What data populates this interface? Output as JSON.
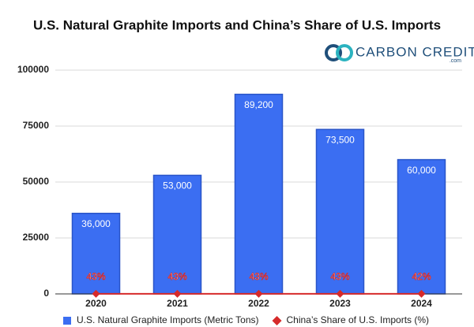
{
  "chart_data": {
    "type": "bar",
    "title": "U.S. Natural Graphite Imports and China’s Share of U.S. Imports",
    "logo": {
      "name": "CARBON CREDITS",
      "domain": ".com"
    },
    "categories": [
      "2020",
      "2021",
      "2022",
      "2023",
      "2024"
    ],
    "series": [
      {
        "name": "U.S. Natural Graphite Imports (Metric Tons)",
        "color": "#3b6ef2",
        "type": "bar",
        "values": [
          36000,
          53000,
          89200,
          73500,
          60000
        ],
        "value_labels": [
          "36,000",
          "53,000",
          "89,200",
          "73,500",
          "60,000"
        ]
      },
      {
        "name": "China’s Share of U.S. Imports (%)",
        "color": "#d62a2a",
        "type": "line",
        "values": [
          43,
          43,
          43,
          43,
          42
        ],
        "value_labels": [
          "43%",
          "43%",
          "43%",
          "43%",
          "42%"
        ]
      }
    ],
    "ylim": [
      0,
      100000
    ],
    "yticks": [
      0,
      25000,
      50000,
      75000,
      100000
    ],
    "grid": true,
    "legend": "bottom"
  }
}
